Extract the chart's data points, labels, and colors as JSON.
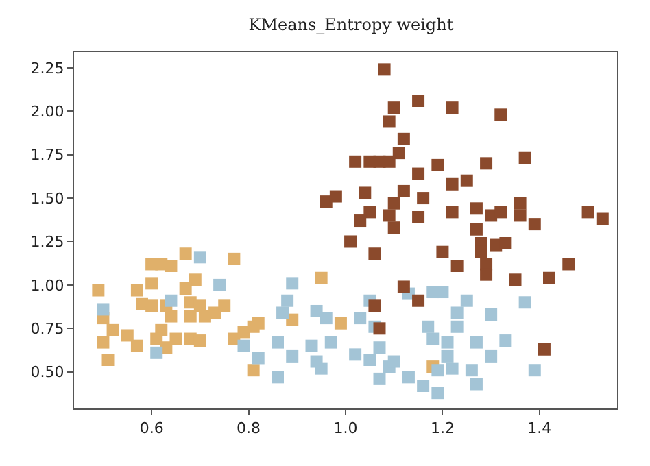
{
  "chart_data": {
    "type": "scatter",
    "title": "KMeans_Entropy weight",
    "marker": "square",
    "grid": false,
    "xlim": [
      0.44,
      1.56
    ],
    "ylim": [
      0.29,
      2.34
    ],
    "xticks": [
      0.6,
      0.8,
      {
        "value": 1.0,
        "label": "1.0"
      },
      1.2,
      1.4
    ],
    "yticks": [
      {
        "value": 0.5,
        "label": "0.50"
      },
      {
        "value": 0.75,
        "label": "0.75"
      },
      {
        "value": 1.0,
        "label": "1.00"
      },
      {
        "value": 1.25,
        "label": "1.25"
      },
      {
        "value": 1.5,
        "label": "1.50"
      },
      {
        "value": 1.75,
        "label": "1.75"
      },
      {
        "value": 2.0,
        "label": "2.00"
      },
      {
        "value": 2.25,
        "label": "2.25"
      }
    ],
    "series": [
      {
        "color": "#e0b06a",
        "x": [
          0.49,
          0.5,
          0.52,
          0.5,
          0.51,
          0.55,
          0.57,
          0.57,
          0.6,
          0.62,
          0.64,
          0.67,
          0.6,
          0.58,
          0.6,
          0.63,
          0.64,
          0.62,
          0.61,
          0.63,
          0.65,
          0.68,
          0.7,
          0.69,
          0.67,
          0.68,
          0.7,
          0.71,
          0.73,
          0.75,
          0.77,
          0.68,
          0.77,
          0.79,
          0.81,
          0.82,
          0.81,
          0.95,
          0.89,
          0.99,
          1.18
        ],
        "values": [
          0.97,
          0.81,
          0.74,
          0.67,
          0.57,
          0.71,
          0.65,
          0.97,
          1.12,
          1.12,
          1.11,
          1.18,
          1.01,
          0.89,
          0.88,
          0.88,
          0.82,
          0.74,
          0.69,
          0.64,
          0.69,
          0.69,
          0.68,
          1.03,
          0.98,
          0.9,
          0.88,
          0.82,
          0.84,
          0.88,
          1.15,
          0.82,
          0.69,
          0.73,
          0.76,
          0.78,
          0.51,
          1.04,
          0.8,
          0.78,
          0.53
        ]
      },
      {
        "color": "#a3c4d6",
        "x": [
          0.5,
          0.61,
          0.64,
          0.7,
          0.74,
          0.79,
          0.82,
          0.86,
          0.87,
          0.86,
          0.89,
          0.88,
          0.89,
          0.93,
          0.94,
          0.95,
          0.97,
          0.94,
          0.96,
          1.02,
          1.03,
          1.05,
          1.06,
          1.05,
          1.07,
          1.09,
          1.1,
          1.07,
          1.13,
          1.16,
          1.13,
          1.18,
          1.2,
          1.25,
          1.23,
          1.23,
          1.17,
          1.18,
          1.21,
          1.21,
          1.19,
          1.22,
          1.26,
          1.27,
          1.19,
          1.27,
          1.3,
          1.3,
          1.33,
          1.37,
          1.39
        ],
        "values": [
          0.86,
          0.61,
          0.91,
          1.16,
          1.0,
          0.65,
          0.58,
          0.47,
          0.84,
          0.67,
          1.01,
          0.91,
          0.59,
          0.65,
          0.56,
          0.52,
          0.67,
          0.85,
          0.81,
          0.6,
          0.81,
          0.91,
          0.76,
          0.57,
          0.64,
          0.53,
          0.56,
          0.46,
          0.47,
          0.42,
          0.95,
          0.96,
          0.96,
          0.91,
          0.84,
          0.76,
          0.76,
          0.69,
          0.67,
          0.59,
          0.51,
          0.52,
          0.51,
          0.43,
          0.38,
          0.67,
          0.59,
          0.83,
          0.68,
          0.9,
          0.51
        ]
      },
      {
        "color": "#8b4a2c",
        "x": [
          1.08,
          1.1,
          1.09,
          1.15,
          1.22,
          1.32,
          1.12,
          1.11,
          1.09,
          1.02,
          1.05,
          1.07,
          1.19,
          1.15,
          1.29,
          1.37,
          1.22,
          1.25,
          1.04,
          1.12,
          1.16,
          1.05,
          1.03,
          1.1,
          1.09,
          1.1,
          1.15,
          1.22,
          1.27,
          1.3,
          1.32,
          1.36,
          1.36,
          1.39,
          1.5,
          1.53,
          0.96,
          0.98,
          1.01,
          1.06,
          1.2,
          1.23,
          1.27,
          1.28,
          1.31,
          1.33,
          1.28,
          1.29,
          1.29,
          1.35,
          1.42,
          1.46,
          1.12,
          1.15,
          1.06,
          1.07,
          1.41
        ],
        "values": [
          2.24,
          2.02,
          1.94,
          2.06,
          2.02,
          1.98,
          1.84,
          1.76,
          1.71,
          1.71,
          1.71,
          1.71,
          1.69,
          1.64,
          1.7,
          1.73,
          1.58,
          1.6,
          1.53,
          1.54,
          1.5,
          1.42,
          1.37,
          1.47,
          1.4,
          1.33,
          1.39,
          1.42,
          1.44,
          1.4,
          1.42,
          1.47,
          1.4,
          1.35,
          1.42,
          1.38,
          1.48,
          1.51,
          1.25,
          1.18,
          1.19,
          1.11,
          1.32,
          1.24,
          1.23,
          1.24,
          1.19,
          1.12,
          1.06,
          1.03,
          1.04,
          1.12,
          0.99,
          0.91,
          0.88,
          0.75,
          0.63
        ]
      }
    ]
  }
}
